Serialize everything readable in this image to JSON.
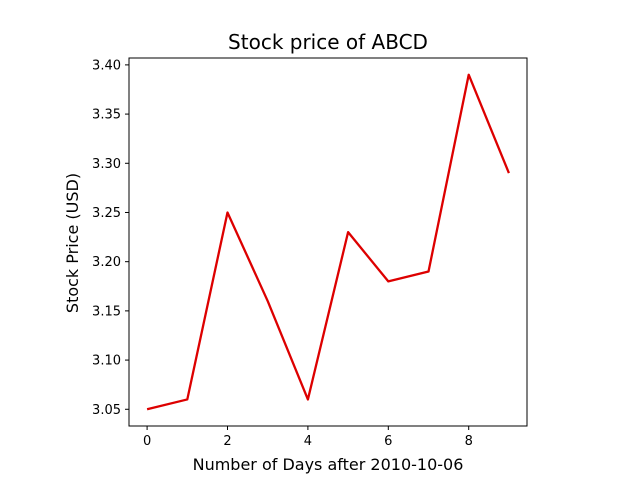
{
  "chart_data": {
    "type": "line",
    "title": "Stock price of ABCD",
    "xlabel": "Number of Days after 2010-10-06",
    "ylabel": "Stock Price (USD)",
    "x": [
      0,
      1,
      2,
      3,
      4,
      5,
      6,
      7,
      8,
      9
    ],
    "series": [
      {
        "values": [
          3.05,
          3.06,
          3.25,
          3.16,
          3.06,
          3.23,
          3.18,
          3.19,
          3.39,
          3.29
        ],
        "color": "#dd0000"
      }
    ],
    "xlim": [
      -0.45,
      9.45
    ],
    "ylim": [
      3.033,
      3.407
    ],
    "xticks": [
      "0",
      "2",
      "4",
      "6",
      "8"
    ],
    "yticks": [
      "3.05",
      "3.10",
      "3.15",
      "3.20",
      "3.25",
      "3.30",
      "3.35",
      "3.40"
    ],
    "grid": false,
    "legend": false
  }
}
